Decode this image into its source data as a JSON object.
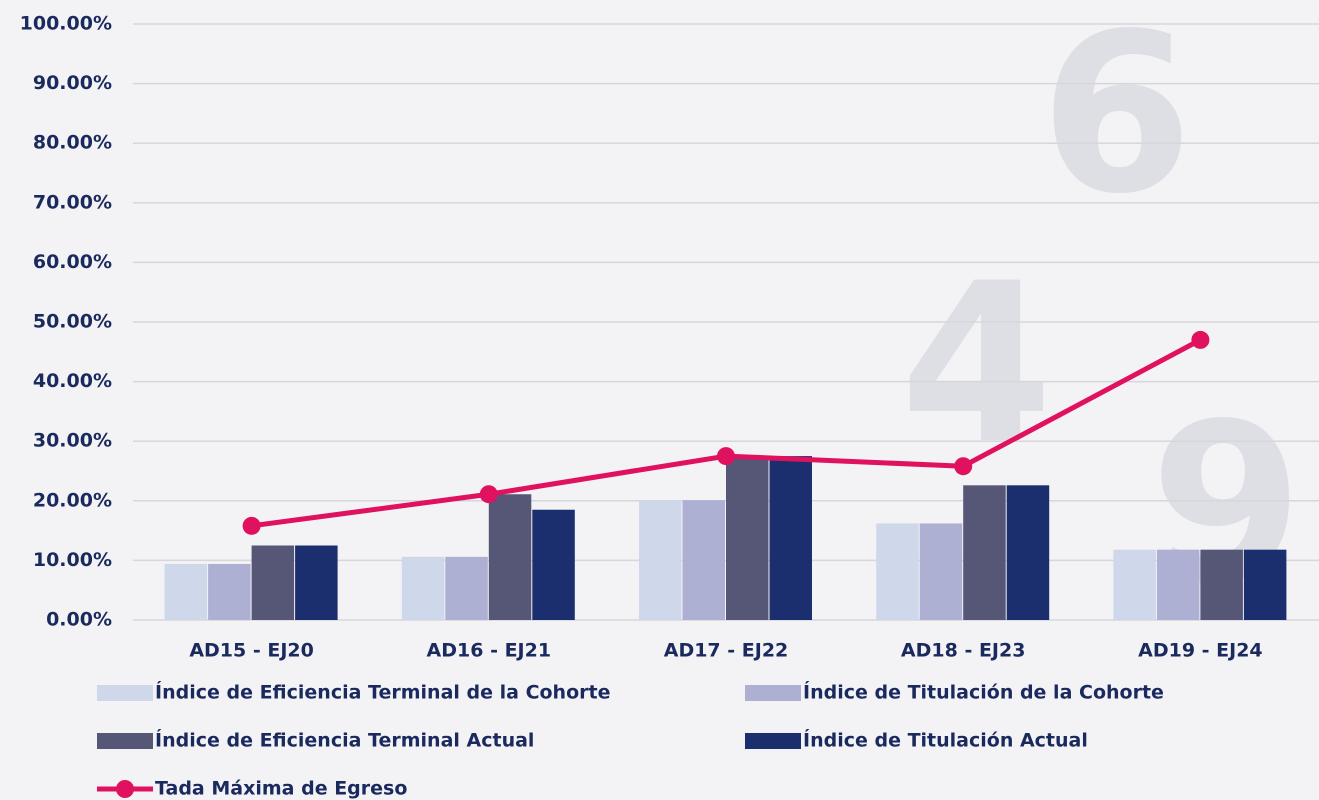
{
  "chart_data": {
    "type": "bar",
    "categories": [
      "AD15 - EJ20",
      "AD16 - EJ21",
      "AD17 - EJ22",
      "AD18 - EJ23",
      "AD19 - EJ24"
    ],
    "series": [
      {
        "name": "Índice de Eficiencia Terminal de la Cohorte",
        "color": "#cfd8ea",
        "values": [
          9.4,
          10.6,
          20.1,
          16.2,
          11.8
        ]
      },
      {
        "name": "Índice de Titulación de la Cohorte",
        "color": "#adb0d2",
        "values": [
          9.4,
          10.6,
          20.1,
          16.2,
          11.8
        ]
      },
      {
        "name": "Índice de Eficiencia Terminal Actual",
        "color": "#565677",
        "values": [
          12.5,
          21.1,
          27.5,
          22.6,
          11.8
        ]
      },
      {
        "name": "Índice de Titulación Actual",
        "color": "#1b2f6e",
        "values": [
          12.5,
          18.5,
          27.5,
          22.6,
          11.8
        ]
      },
      {
        "name": "Tada Máxima de Egreso",
        "color": "#e0115f",
        "type": "line",
        "values": [
          15.8,
          21.1,
          27.5,
          25.8,
          47.0
        ]
      }
    ],
    "ylim": [
      0,
      100
    ],
    "yticks": [
      {
        "value": 0,
        "label": "0.00%"
      },
      {
        "value": 10,
        "label": "10.00%"
      },
      {
        "value": 20,
        "label": "20.00%"
      },
      {
        "value": 30,
        "label": "30.00%"
      },
      {
        "value": 40,
        "label": "40.00%"
      },
      {
        "value": 50,
        "label": "50.00%"
      },
      {
        "value": 60,
        "label": "60.00%"
      },
      {
        "value": 70,
        "label": "70.00%"
      },
      {
        "value": 80,
        "label": "80.00%"
      },
      {
        "value": 90,
        "label": "90.00%"
      },
      {
        "value": 100,
        "label": "100.00%"
      }
    ],
    "grid": true
  }
}
